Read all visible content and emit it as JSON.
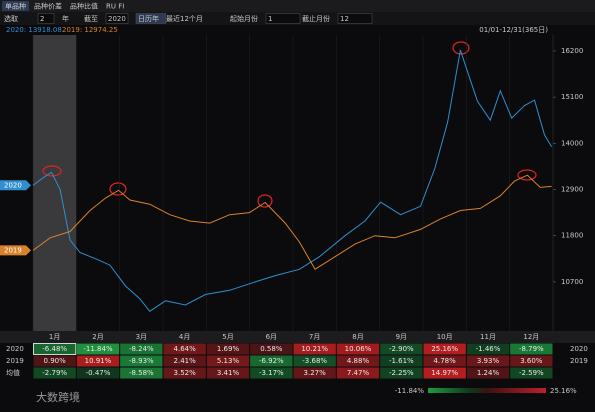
{
  "toolbar": {
    "tabs": [
      "单品种",
      "品种价差",
      "品种比值",
      "RU FI"
    ],
    "controls": [
      "选取",
      "2",
      "年",
      "截至",
      "2020",
      "日历年",
      "最近12个月",
      "起始月份",
      "1",
      "截止月份",
      "12"
    ]
  },
  "chart_data": {
    "type": "line",
    "legend_labels": [
      "2020: 13918.08",
      "2019: 12974.25"
    ],
    "range_label": "01/01-12/31(365日)",
    "categories": [
      "1月",
      "2月",
      "3月",
      "4月",
      "5月",
      "6月",
      "7月",
      "8月",
      "9月",
      "10月",
      "11月",
      "12月"
    ],
    "xlim": [
      1,
      366
    ],
    "ylim": [
      9530,
      16580
    ],
    "yticks": [
      10700,
      11800,
      12900,
      14000,
      15100,
      16200
    ],
    "grid": false,
    "series": [
      {
        "name": "2020",
        "color": "#2f8fcf",
        "x": [
          1,
          9,
          14,
          20,
          27,
          34,
          45,
          55,
          66,
          76,
          83,
          94,
          108,
          122,
          139,
          157,
          171,
          188,
          202,
          220,
          234,
          245,
          259,
          273,
          283,
          292,
          301,
          308,
          313,
          322,
          329,
          337,
          346,
          353,
          360,
          365
        ],
        "values": [
          13000,
          13200,
          13310,
          12900,
          11700,
          11400,
          11250,
          11100,
          10600,
          10300,
          10000,
          10250,
          10150,
          10400,
          10500,
          10700,
          10850,
          11000,
          11300,
          11800,
          12150,
          12600,
          12300,
          12500,
          13400,
          14500,
          16220,
          15500,
          15000,
          14550,
          15250,
          14600,
          14900,
          15030,
          14200,
          13918.08
        ]
      },
      {
        "name": "2019",
        "color": "#d9822b",
        "x": [
          1,
          13,
          27,
          41,
          52,
          61,
          69,
          83,
          97,
          111,
          125,
          139,
          153,
          164,
          178,
          188,
          199,
          213,
          227,
          241,
          255,
          273,
          287,
          301,
          315,
          329,
          339,
          348,
          357,
          365
        ],
        "values": [
          11450,
          11750,
          11900,
          12400,
          12700,
          12880,
          12650,
          12550,
          12300,
          12150,
          12100,
          12300,
          12350,
          12590,
          12100,
          11650,
          11000,
          11300,
          11600,
          11800,
          11750,
          11950,
          12200,
          12400,
          12450,
          12750,
          13100,
          13240,
          12950,
          12974.25
        ]
      }
    ]
  },
  "table": {
    "rows": [
      {
        "label": "2020",
        "right": "2020",
        "cells": [
          "-6.48%",
          "-11.84%",
          "-8.24%",
          "4.64%",
          "1.69%",
          "0.58%",
          "10.21%",
          "10.06%",
          "-2.90%",
          "25.16%",
          "-1.46%",
          "-8.79%"
        ]
      },
      {
        "label": "2019",
        "right": "2019",
        "cells": [
          "0.90%",
          "10.91%",
          "-8.93%",
          "2.41%",
          "5.13%",
          "-6.92%",
          "-3.68%",
          "4.88%",
          "-1.61%",
          "4.78%",
          "3.93%",
          "3.60%"
        ]
      },
      {
        "label": "均值",
        "cells": [
          "-2.79%",
          "-0.47%",
          "-8.58%",
          "3.52%",
          "3.41%",
          "-3.17%",
          "3.27%",
          "7.47%",
          "-2.25%",
          "14.97%",
          "1.24%",
          "-2.59%"
        ]
      }
    ]
  },
  "scale": {
    "min_label": "-11.84%",
    "max_label": "25.16%"
  },
  "watermark": "大数跨境"
}
